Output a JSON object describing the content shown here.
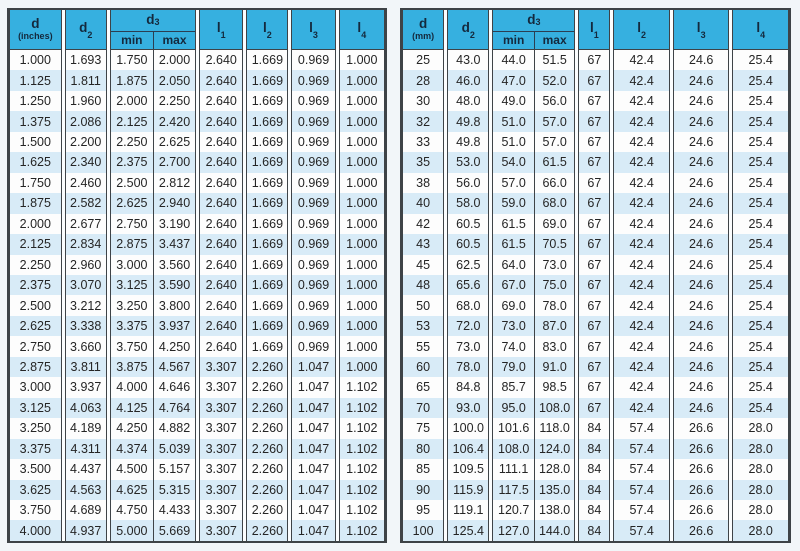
{
  "colors": {
    "header_bg": "#36b0e0",
    "header_text": "#14293d",
    "row_stripe": "#d8ebf7",
    "row_base": "#fdfdfd",
    "border": "#3e4347"
  },
  "tables": [
    {
      "title": "inch-dimension-table",
      "unit_header": {
        "line1": "d",
        "line2": "(inches)"
      },
      "headers": {
        "d2": {
          "base": "d",
          "sub": "2"
        },
        "d3": {
          "base": "d",
          "sub": "3",
          "min": "min",
          "max": "max"
        },
        "l1": {
          "base": "l",
          "sub": "1"
        },
        "l2": {
          "base": "l",
          "sub": "2"
        },
        "l3": {
          "base": "l",
          "sub": "3"
        },
        "l4": {
          "base": "l",
          "sub": "4"
        }
      },
      "rows": [
        [
          "1.000",
          "1.693",
          "1.750",
          "2.000",
          "2.640",
          "1.669",
          "0.969",
          "1.000"
        ],
        [
          "1.125",
          "1.811",
          "1.875",
          "2.050",
          "2.640",
          "1.669",
          "0.969",
          "1.000"
        ],
        [
          "1.250",
          "1.960",
          "2.000",
          "2.250",
          "2.640",
          "1.669",
          "0.969",
          "1.000"
        ],
        [
          "1.375",
          "2.086",
          "2.125",
          "2.420",
          "2.640",
          "1.669",
          "0.969",
          "1.000"
        ],
        [
          "1.500",
          "2.200",
          "2.250",
          "2.625",
          "2.640",
          "1.669",
          "0.969",
          "1.000"
        ],
        [
          "1.625",
          "2.340",
          "2.375",
          "2.700",
          "2.640",
          "1.669",
          "0.969",
          "1.000"
        ],
        [
          "1.750",
          "2.460",
          "2.500",
          "2.812",
          "2.640",
          "1.669",
          "0.969",
          "1.000"
        ],
        [
          "1.875",
          "2.582",
          "2.625",
          "2.940",
          "2.640",
          "1.669",
          "0.969",
          "1.000"
        ],
        [
          "2.000",
          "2.677",
          "2.750",
          "3.190",
          "2.640",
          "1.669",
          "0.969",
          "1.000"
        ],
        [
          "2.125",
          "2.834",
          "2.875",
          "3.437",
          "2.640",
          "1.669",
          "0.969",
          "1.000"
        ],
        [
          "2.250",
          "2.960",
          "3.000",
          "3.560",
          "2.640",
          "1.669",
          "0.969",
          "1.000"
        ],
        [
          "2.375",
          "3.070",
          "3.125",
          "3.590",
          "2.640",
          "1.669",
          "0.969",
          "1.000"
        ],
        [
          "2.500",
          "3.212",
          "3.250",
          "3.800",
          "2.640",
          "1.669",
          "0.969",
          "1.000"
        ],
        [
          "2.625",
          "3.338",
          "3.375",
          "3.937",
          "2.640",
          "1.669",
          "0.969",
          "1.000"
        ],
        [
          "2.750",
          "3.660",
          "3.750",
          "4.250",
          "2.640",
          "1.669",
          "0.969",
          "1.000"
        ],
        [
          "2.875",
          "3.811",
          "3.875",
          "4.567",
          "3.307",
          "2.260",
          "1.047",
          "1.000"
        ],
        [
          "3.000",
          "3.937",
          "4.000",
          "4.646",
          "3.307",
          "2.260",
          "1.047",
          "1.102"
        ],
        [
          "3.125",
          "4.063",
          "4.125",
          "4.764",
          "3.307",
          "2.260",
          "1.047",
          "1.102"
        ],
        [
          "3.250",
          "4.189",
          "4.250",
          "4.882",
          "3.307",
          "2.260",
          "1.047",
          "1.102"
        ],
        [
          "3.375",
          "4.311",
          "4.374",
          "5.039",
          "3.307",
          "2.260",
          "1.047",
          "1.102"
        ],
        [
          "3.500",
          "4.437",
          "4.500",
          "5.157",
          "3.307",
          "2.260",
          "1.047",
          "1.102"
        ],
        [
          "3.625",
          "4.563",
          "4.625",
          "5.315",
          "3.307",
          "2.260",
          "1.047",
          "1.102"
        ],
        [
          "3.750",
          "4.689",
          "4.750",
          "4.433",
          "3.307",
          "2.260",
          "1.047",
          "1.102"
        ],
        [
          "4.000",
          "4.937",
          "5.000",
          "5.669",
          "3.307",
          "2.260",
          "1.047",
          "1.102"
        ]
      ]
    },
    {
      "title": "mm-dimension-table",
      "unit_header": {
        "line1": "d",
        "line2": "(mm)"
      },
      "headers": {
        "d2": {
          "base": "d",
          "sub": "2"
        },
        "d3": {
          "base": "d",
          "sub": "3",
          "min": "min",
          "max": "max"
        },
        "l1": {
          "base": "l",
          "sub": "1"
        },
        "l2": {
          "base": "l",
          "sub": "2"
        },
        "l3": {
          "base": "l",
          "sub": "3"
        },
        "l4": {
          "base": "l",
          "sub": "4"
        }
      },
      "rows": [
        [
          "25",
          "43.0",
          "44.0",
          "51.5",
          "67",
          "42.4",
          "24.6",
          "25.4"
        ],
        [
          "28",
          "46.0",
          "47.0",
          "52.0",
          "67",
          "42.4",
          "24.6",
          "25.4"
        ],
        [
          "30",
          "48.0",
          "49.0",
          "56.0",
          "67",
          "42.4",
          "24.6",
          "25.4"
        ],
        [
          "32",
          "49.8",
          "51.0",
          "57.0",
          "67",
          "42.4",
          "24.6",
          "25.4"
        ],
        [
          "33",
          "49.8",
          "51.0",
          "57.0",
          "67",
          "42.4",
          "24.6",
          "25.4"
        ],
        [
          "35",
          "53.0",
          "54.0",
          "61.5",
          "67",
          "42.4",
          "24.6",
          "25.4"
        ],
        [
          "38",
          "56.0",
          "57.0",
          "66.0",
          "67",
          "42.4",
          "24.6",
          "25.4"
        ],
        [
          "40",
          "58.0",
          "59.0",
          "68.0",
          "67",
          "42.4",
          "24.6",
          "25.4"
        ],
        [
          "42",
          "60.5",
          "61.5",
          "69.0",
          "67",
          "42.4",
          "24.6",
          "25.4"
        ],
        [
          "43",
          "60.5",
          "61.5",
          "70.5",
          "67",
          "42.4",
          "24.6",
          "25.4"
        ],
        [
          "45",
          "62.5",
          "64.0",
          "73.0",
          "67",
          "42.4",
          "24.6",
          "25.4"
        ],
        [
          "48",
          "65.6",
          "67.0",
          "75.0",
          "67",
          "42.4",
          "24.6",
          "25.4"
        ],
        [
          "50",
          "68.0",
          "69.0",
          "78.0",
          "67",
          "42.4",
          "24.6",
          "25.4"
        ],
        [
          "53",
          "72.0",
          "73.0",
          "87.0",
          "67",
          "42.4",
          "24.6",
          "25.4"
        ],
        [
          "55",
          "73.0",
          "74.0",
          "83.0",
          "67",
          "42.4",
          "24.6",
          "25.4"
        ],
        [
          "60",
          "78.0",
          "79.0",
          "91.0",
          "67",
          "42.4",
          "24.6",
          "25.4"
        ],
        [
          "65",
          "84.8",
          "85.7",
          "98.5",
          "67",
          "42.4",
          "24.6",
          "25.4"
        ],
        [
          "70",
          "93.0",
          "95.0",
          "108.0",
          "67",
          "42.4",
          "24.6",
          "25.4"
        ],
        [
          "75",
          "100.0",
          "101.6",
          "118.0",
          "84",
          "57.4",
          "26.6",
          "28.0"
        ],
        [
          "80",
          "106.4",
          "108.0",
          "124.0",
          "84",
          "57.4",
          "26.6",
          "28.0"
        ],
        [
          "85",
          "109.5",
          "111.1",
          "128.0",
          "84",
          "57.4",
          "26.6",
          "28.0"
        ],
        [
          "90",
          "115.9",
          "117.5",
          "135.0",
          "84",
          "57.4",
          "26.6",
          "28.0"
        ],
        [
          "95",
          "119.1",
          "120.7",
          "138.0",
          "84",
          "57.4",
          "26.6",
          "28.0"
        ],
        [
          "100",
          "125.4",
          "127.0",
          "144.0",
          "84",
          "57.4",
          "26.6",
          "28.0"
        ]
      ]
    }
  ]
}
